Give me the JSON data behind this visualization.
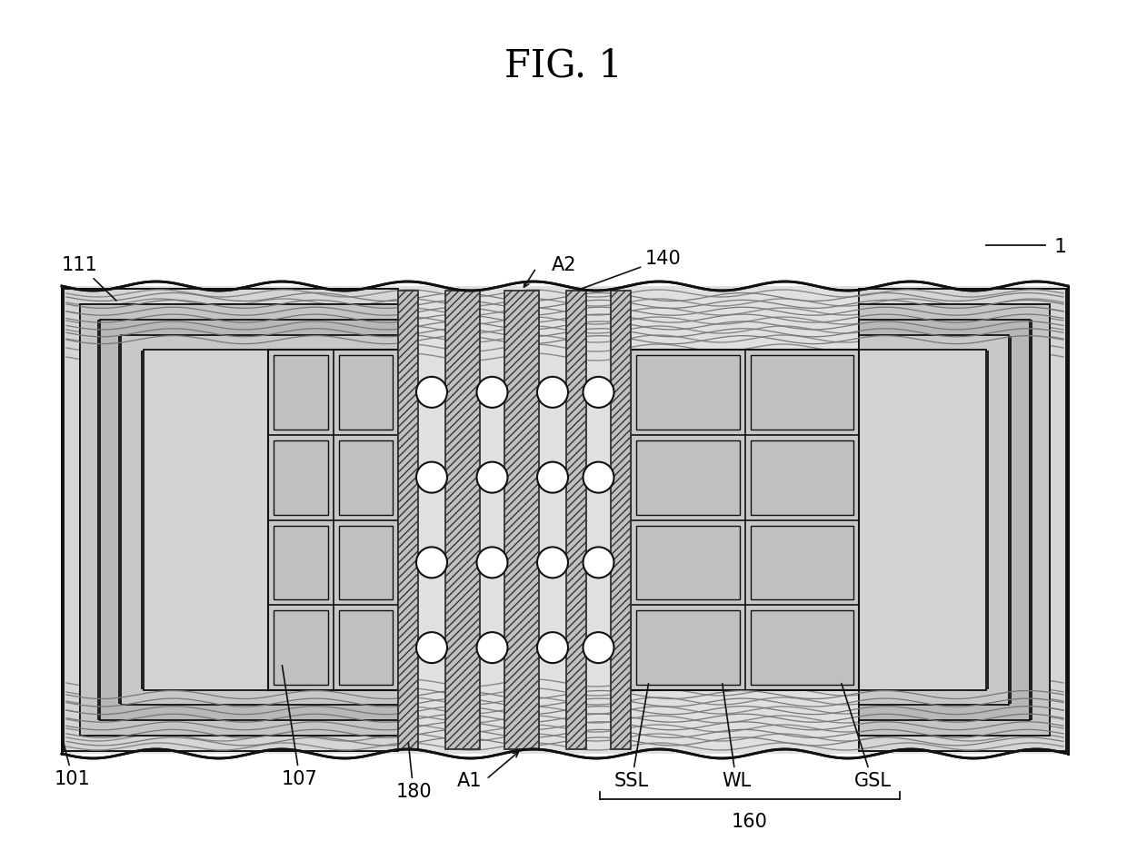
{
  "title": "FIG. 1",
  "title_fontsize": 30,
  "bg_color": "#ffffff",
  "fig_width": 12.4,
  "fig_height": 9.47,
  "label_1": "1",
  "label_101": "101",
  "label_107": "107",
  "label_111": "111",
  "label_140": "140",
  "label_160": "160",
  "label_180": "180",
  "label_A1": "A1",
  "label_A2": "A2",
  "label_SSL": "SSL",
  "label_WL": "WL",
  "label_GSL": "GSL",
  "lc": "#111111",
  "gray_fill": "#c8c8c8",
  "hatch_fc": "#c8c8c8",
  "circle_fc": "#ffffff"
}
